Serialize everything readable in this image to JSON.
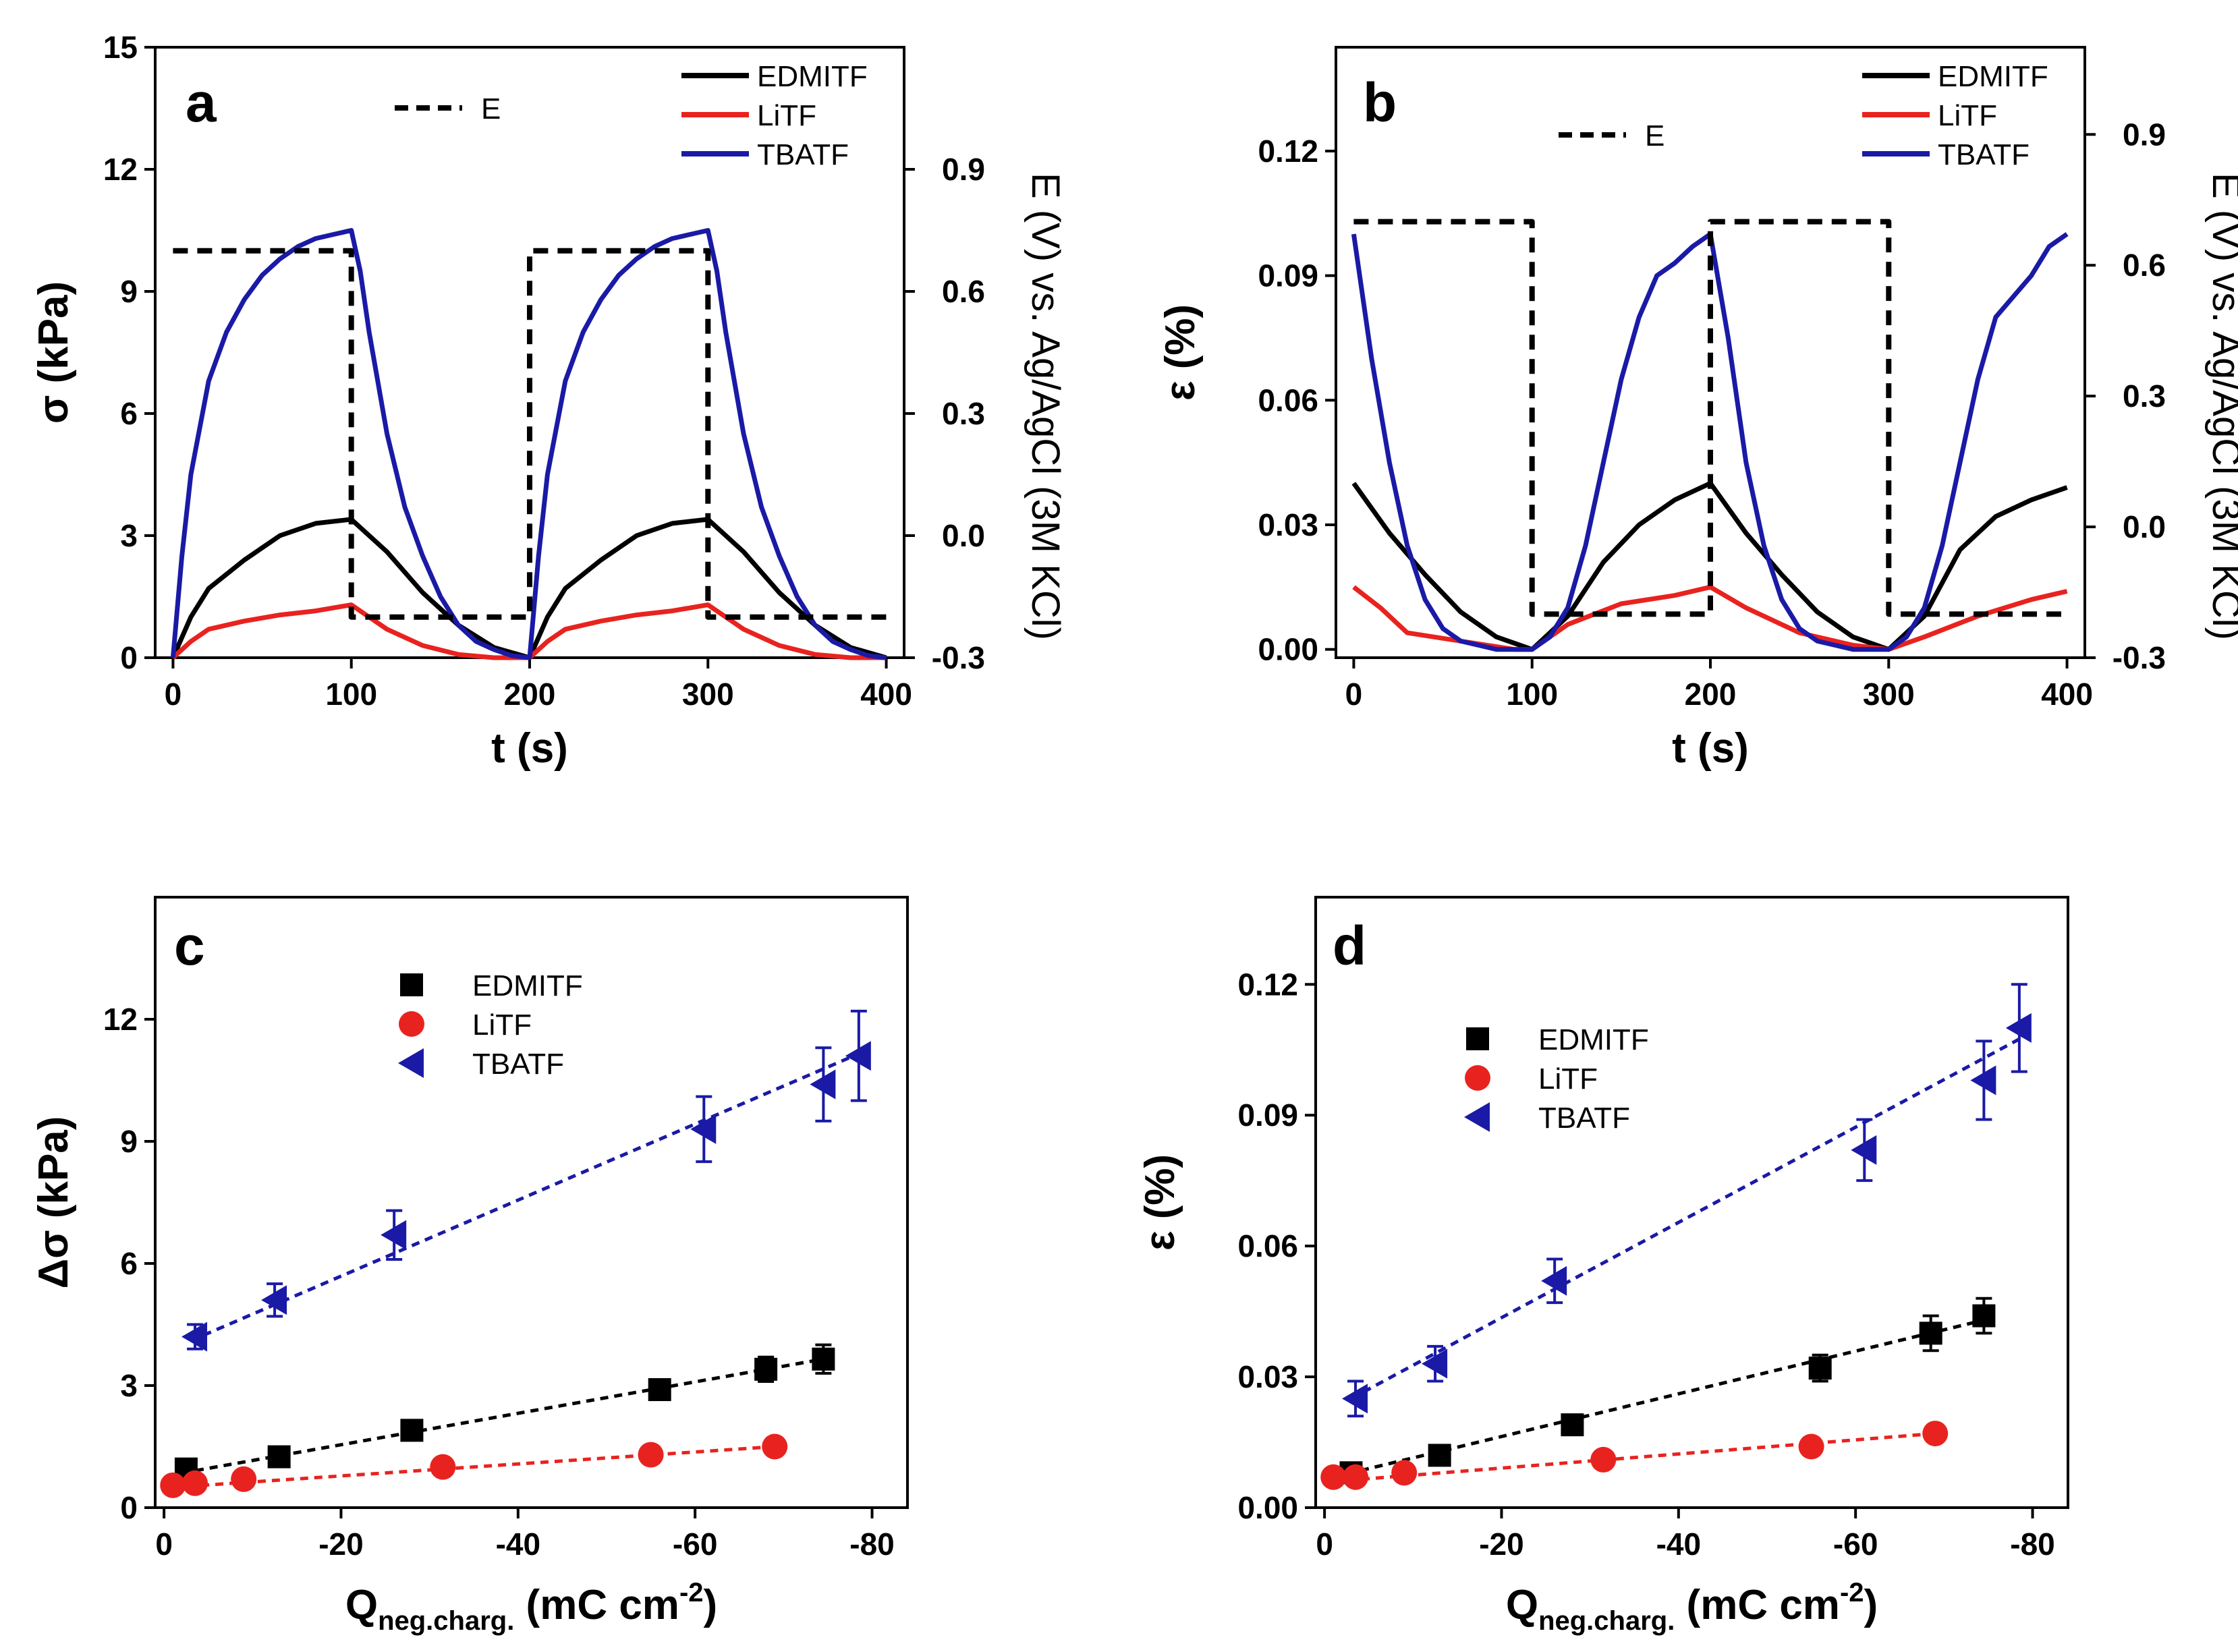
{
  "chart_data": [
    {
      "panel": "a",
      "type": "line",
      "xlabel": "t (s)",
      "ylabel": "σ (kPa)",
      "y2label": "E (V) vs. Ag/AgCl (3M KCl)",
      "xlim": [
        -10,
        410
      ],
      "ylim": [
        0,
        15
      ],
      "y2lim": [
        -0.3,
        1.2
      ],
      "xticks": [
        "0",
        "100",
        "200",
        "300",
        "400"
      ],
      "yticks": [
        "0",
        "3",
        "6",
        "9",
        "12",
        "15"
      ],
      "y2ticks": [
        "-0.3",
        "0.0",
        "0.3",
        "0.6",
        "0.9"
      ],
      "legend": {
        "lines": [
          "EDMITF",
          "LiTF",
          "TBATF"
        ],
        "dashed": "E"
      },
      "series": [
        {
          "name": "EDMITF",
          "color": "#000000",
          "x": [
            0,
            10,
            20,
            40,
            60,
            80,
            100,
            120,
            140,
            160,
            180,
            200,
            210,
            220,
            240,
            260,
            280,
            300,
            320,
            340,
            360,
            380,
            400
          ],
          "y": [
            0,
            1.0,
            1.7,
            2.4,
            3.0,
            3.3,
            3.4,
            2.6,
            1.6,
            0.8,
            0.25,
            0,
            1.0,
            1.7,
            2.4,
            3.0,
            3.3,
            3.4,
            2.6,
            1.6,
            0.8,
            0.25,
            0
          ]
        },
        {
          "name": "LiTF",
          "color": "#e8231f",
          "x": [
            0,
            10,
            20,
            40,
            60,
            80,
            100,
            120,
            140,
            160,
            180,
            200,
            210,
            220,
            240,
            260,
            280,
            300,
            320,
            340,
            360,
            380,
            400
          ],
          "y": [
            0,
            0.4,
            0.7,
            0.9,
            1.05,
            1.15,
            1.3,
            0.7,
            0.3,
            0.08,
            0,
            0,
            0.4,
            0.7,
            0.9,
            1.05,
            1.15,
            1.3,
            0.7,
            0.3,
            0.08,
            0,
            0
          ]
        },
        {
          "name": "TBATF",
          "color": "#1a1aa6",
          "x": [
            0,
            5,
            10,
            20,
            30,
            40,
            50,
            60,
            70,
            80,
            90,
            100,
            105,
            110,
            120,
            130,
            140,
            150,
            160,
            170,
            180,
            190,
            200,
            205,
            210,
            220,
            230,
            240,
            250,
            260,
            270,
            280,
            290,
            300,
            305,
            310,
            320,
            330,
            340,
            350,
            360,
            370,
            380,
            390,
            400
          ],
          "y": [
            0,
            2.5,
            4.5,
            6.8,
            8.0,
            8.8,
            9.4,
            9.8,
            10.1,
            10.3,
            10.4,
            10.5,
            9.5,
            8.0,
            5.5,
            3.7,
            2.5,
            1.5,
            0.8,
            0.4,
            0.2,
            0.05,
            0,
            2.5,
            4.5,
            6.8,
            8.0,
            8.8,
            9.4,
            9.8,
            10.1,
            10.3,
            10.4,
            10.5,
            9.5,
            8.0,
            5.5,
            3.7,
            2.5,
            1.5,
            0.8,
            0.4,
            0.2,
            0.05,
            0
          ]
        },
        {
          "name": "E",
          "color": "#000000",
          "dashed": true,
          "axis": "right",
          "x": [
            0,
            100,
            100,
            200,
            200,
            300,
            300,
            400
          ],
          "y": [
            0.7,
            0.7,
            -0.2,
            -0.2,
            0.7,
            0.7,
            -0.2,
            -0.2
          ]
        }
      ]
    },
    {
      "panel": "b",
      "type": "line",
      "xlabel": "t (s)",
      "ylabel": "ε (%)",
      "y2label": "E (V) vs. Ag/AgCl (3M KCl)",
      "xlim": [
        -10,
        410
      ],
      "ylim": [
        -0.002,
        0.145
      ],
      "y2lim": [
        -0.3,
        1.1
      ],
      "xticks": [
        "0",
        "100",
        "200",
        "300",
        "400"
      ],
      "yticks": [
        "0.00",
        "0.03",
        "0.06",
        "0.09",
        "0.12"
      ],
      "y2ticks": [
        "-0.3",
        "0.0",
        "0.3",
        "0.6",
        "0.9"
      ],
      "legend": {
        "lines": [
          "EDMITF",
          "LiTF",
          "TBATF"
        ],
        "dashed": "E"
      },
      "series": [
        {
          "name": "EDMITF",
          "color": "#000000",
          "x": [
            0,
            20,
            40,
            60,
            80,
            100,
            120,
            140,
            160,
            180,
            200,
            220,
            240,
            260,
            280,
            300,
            320,
            340,
            360,
            380,
            400
          ],
          "y": [
            0.04,
            0.028,
            0.018,
            0.009,
            0.003,
            0,
            0.008,
            0.021,
            0.03,
            0.036,
            0.04,
            0.028,
            0.018,
            0.009,
            0.003,
            0,
            0.008,
            0.024,
            0.032,
            0.036,
            0.039
          ]
        },
        {
          "name": "LiTF",
          "color": "#e8231f",
          "x": [
            0,
            15,
            30,
            60,
            90,
            100,
            120,
            150,
            180,
            200,
            220,
            250,
            280,
            300,
            320,
            350,
            380,
            400
          ],
          "y": [
            0.015,
            0.01,
            0.004,
            0.002,
            0.0,
            0,
            0.006,
            0.011,
            0.013,
            0.015,
            0.01,
            0.004,
            0.001,
            0,
            0.003,
            0.008,
            0.012,
            0.014
          ]
        },
        {
          "name": "TBATF",
          "color": "#1a1aa6",
          "x": [
            0,
            10,
            20,
            30,
            40,
            50,
            60,
            70,
            80,
            90,
            100,
            110,
            120,
            130,
            140,
            150,
            160,
            170,
            180,
            190,
            200,
            210,
            220,
            230,
            240,
            250,
            260,
            270,
            280,
            290,
            300,
            310,
            320,
            330,
            340,
            350,
            360,
            370,
            380,
            390,
            400
          ],
          "y": [
            0.1,
            0.07,
            0.045,
            0.025,
            0.012,
            0.005,
            0.002,
            0.001,
            0.0,
            0.0,
            0,
            0.003,
            0.01,
            0.025,
            0.045,
            0.065,
            0.08,
            0.09,
            0.093,
            0.097,
            0.1,
            0.075,
            0.045,
            0.025,
            0.012,
            0.005,
            0.002,
            0.001,
            0.0,
            0.0,
            0,
            0.003,
            0.01,
            0.025,
            0.045,
            0.065,
            0.08,
            0.085,
            0.09,
            0.097,
            0.1
          ]
        },
        {
          "name": "E",
          "color": "#000000",
          "dashed": true,
          "axis": "right",
          "x": [
            0,
            100,
            100,
            200,
            200,
            300,
            300,
            400
          ],
          "y": [
            0.7,
            0.7,
            -0.2,
            -0.2,
            0.7,
            0.7,
            -0.2,
            -0.2
          ]
        }
      ]
    },
    {
      "panel": "c",
      "type": "scatter",
      "xlabel": "Q",
      "xlabel_sub": "neg.charg.",
      "xlabel_units": " (mC cm",
      "xlabel_sup": "-2",
      "xlabel_close": ")",
      "ylabel": "Δσ (kPa)",
      "xlim": [
        1,
        -84
      ],
      "ylim": [
        0,
        15
      ],
      "xticks": [
        "0",
        "-20",
        "-40",
        "-60",
        "-80"
      ],
      "yticks": [
        "0",
        "3",
        "6",
        "9",
        "12"
      ],
      "legend": [
        "EDMITF",
        "LiTF",
        "TBATF"
      ],
      "series": [
        {
          "name": "EDMITF",
          "marker": "square",
          "color": "#000000",
          "x": [
            -2.5,
            -13,
            -28,
            -56,
            -68,
            -74.5
          ],
          "y": [
            0.95,
            1.25,
            1.9,
            2.9,
            3.4,
            3.65
          ],
          "err": [
            0.1,
            0.15,
            0.15,
            0.2,
            0.3,
            0.35
          ],
          "fit": [
            [
              -2,
              0.85
            ],
            [
              -74.5,
              3.65
            ]
          ]
        },
        {
          "name": "LiTF",
          "marker": "circle",
          "color": "#e8231f",
          "x": [
            -1,
            -3.5,
            -9,
            -31.5,
            -55,
            -69
          ],
          "y": [
            0.55,
            0.6,
            0.7,
            1.0,
            1.3,
            1.5
          ],
          "err": [
            0,
            0,
            0,
            0,
            0,
            0
          ],
          "fit": [
            [
              -1,
              0.5
            ],
            [
              -69,
              1.5
            ]
          ]
        },
        {
          "name": "TBATF",
          "marker": "triangle-left",
          "color": "#1a1aa6",
          "x": [
            -3.5,
            -12.5,
            -26,
            -61,
            -74.5,
            -78.5
          ],
          "y": [
            4.2,
            5.1,
            6.7,
            9.3,
            10.4,
            11.1
          ],
          "err": [
            0.3,
            0.4,
            0.6,
            0.8,
            0.9,
            1.1
          ],
          "fit": [
            [
              -3,
              4.1
            ],
            [
              -79,
              11.2
            ]
          ]
        }
      ]
    },
    {
      "panel": "d",
      "type": "scatter",
      "xlabel": "Q",
      "xlabel_sub": "neg.charg.",
      "xlabel_units": " (mC cm",
      "xlabel_sup": "-2",
      "xlabel_close": ")",
      "ylabel": "ε (%)",
      "xlim": [
        1,
        -84
      ],
      "ylim": [
        0,
        0.14
      ],
      "xticks": [
        "0",
        "-20",
        "-40",
        "-60",
        "-80"
      ],
      "yticks": [
        "0.00",
        "0.03",
        "0.06",
        "0.09",
        "0.12"
      ],
      "legend": [
        "EDMITF",
        "LiTF",
        "TBATF"
      ],
      "series": [
        {
          "name": "EDMITF",
          "marker": "square",
          "color": "#000000",
          "x": [
            -3,
            -13,
            -28,
            -56,
            -68.5,
            -74.5
          ],
          "y": [
            0.008,
            0.012,
            0.019,
            0.032,
            0.04,
            0.044
          ],
          "err": [
            0.001,
            0.002,
            0.002,
            0.003,
            0.004,
            0.004
          ],
          "fit": [
            [
              -1,
              0.007
            ],
            [
              -74.5,
              0.043
            ]
          ]
        },
        {
          "name": "LiTF",
          "marker": "circle",
          "color": "#e8231f",
          "x": [
            -1,
            -3.5,
            -9,
            -31.5,
            -55,
            -69
          ],
          "y": [
            0.007,
            0.007,
            0.008,
            0.011,
            0.014,
            0.017
          ],
          "err": [
            0,
            0,
            0,
            0,
            0,
            0
          ],
          "fit": [
            [
              -1,
              0.006
            ],
            [
              -69,
              0.017
            ]
          ]
        },
        {
          "name": "TBATF",
          "marker": "triangle-left",
          "color": "#1a1aa6",
          "x": [
            -3.5,
            -12.5,
            -26,
            -61,
            -74.5,
            -78.5
          ],
          "y": [
            0.025,
            0.033,
            0.052,
            0.082,
            0.098,
            0.11
          ],
          "err": [
            0.004,
            0.004,
            0.005,
            0.007,
            0.009,
            0.01
          ],
          "fit": [
            [
              -3,
              0.025
            ],
            [
              -79,
              0.108
            ]
          ]
        }
      ]
    }
  ]
}
